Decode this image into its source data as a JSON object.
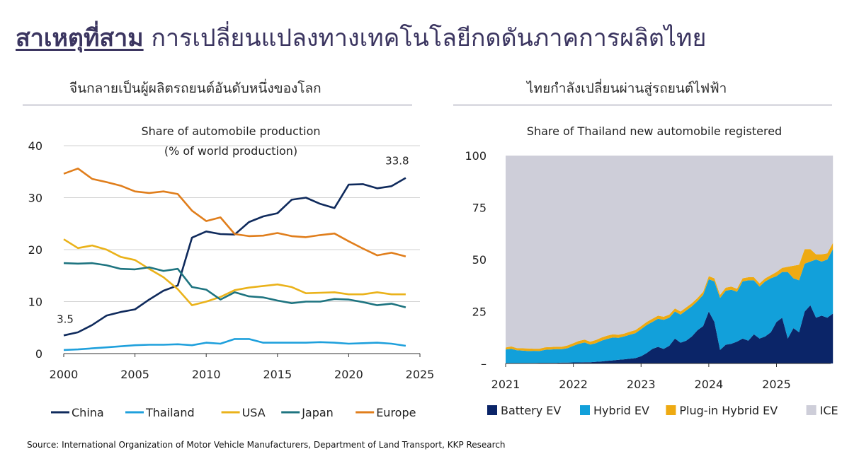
{
  "header": {
    "title_lead": "สาเหตุที่สาม",
    "title_rest": "การเปลี่ยนแปลงทางเทคโนโลยีกดดันภาคการผลิตไทย"
  },
  "left_panel": {
    "subheading": "จีนกลายเป็นผู้ผลิตรถยนต์อันดับหนึ่งของโลก"
  },
  "right_panel": {
    "subheading": "ไทยกำลังเปลี่ยนผ่านสู่รถยนต์ไฟฟ้า"
  },
  "source": "Source: International Organization of Motor Vehicle Manufacturers, Department of Land Transport, KKP Research",
  "chart_data": [
    {
      "type": "line",
      "title": "Share of automobile production",
      "subtitle": "(% of world production)",
      "xlim": [
        2000,
        2025
      ],
      "ylim": [
        0,
        40
      ],
      "xticks": [
        2000,
        2005,
        2010,
        2015,
        2020,
        2025
      ],
      "yticks": [
        0,
        10,
        20,
        30,
        40
      ],
      "x": [
        2000,
        2001,
        2002,
        2003,
        2004,
        2005,
        2006,
        2007,
        2008,
        2009,
        2010,
        2011,
        2012,
        2013,
        2014,
        2015,
        2016,
        2017,
        2018,
        2019,
        2020,
        2021,
        2022,
        2023,
        2024
      ],
      "series": [
        {
          "name": "China",
          "color": "#0f2a5c",
          "values": [
            3.5,
            4.1,
            5.5,
            7.3,
            8.0,
            8.5,
            10.4,
            12.1,
            13.1,
            22.3,
            23.5,
            23.0,
            22.9,
            25.3,
            26.4,
            27.0,
            29.6,
            30.0,
            28.8,
            28.0,
            32.5,
            32.6,
            31.8,
            32.2,
            33.8
          ]
        },
        {
          "name": "Thailand",
          "color": "#1fa0dc",
          "values": [
            0.7,
            0.8,
            1.0,
            1.2,
            1.4,
            1.6,
            1.7,
            1.7,
            1.8,
            1.6,
            2.1,
            1.9,
            2.8,
            2.8,
            2.1,
            2.1,
            2.1,
            2.1,
            2.2,
            2.1,
            1.9,
            2.0,
            2.1,
            1.9,
            1.5
          ]
        },
        {
          "name": "USA",
          "color": "#eab21a",
          "values": [
            22.0,
            20.3,
            20.8,
            20.0,
            18.6,
            18.0,
            16.3,
            14.7,
            12.4,
            9.3,
            10.0,
            10.9,
            12.2,
            12.7,
            13.0,
            13.3,
            12.8,
            11.6,
            11.7,
            11.8,
            11.4,
            11.4,
            11.8,
            11.4,
            11.4
          ]
        },
        {
          "name": "Japan",
          "color": "#1e7480",
          "values": [
            17.4,
            17.3,
            17.4,
            17.0,
            16.3,
            16.2,
            16.6,
            15.9,
            16.3,
            12.8,
            12.3,
            10.4,
            11.8,
            11.0,
            10.8,
            10.2,
            9.7,
            10.0,
            10.0,
            10.5,
            10.4,
            9.9,
            9.3,
            9.6,
            8.9
          ]
        },
        {
          "name": "Europe",
          "color": "#e07e1c",
          "values": [
            34.6,
            35.6,
            33.6,
            33.0,
            32.3,
            31.2,
            30.9,
            31.2,
            30.7,
            27.5,
            25.5,
            26.2,
            23.0,
            22.6,
            22.7,
            23.2,
            22.6,
            22.4,
            22.8,
            23.1,
            21.6,
            20.2,
            18.9,
            19.4,
            18.7
          ]
        }
      ],
      "annotations": [
        {
          "text": "3.5",
          "series": "China",
          "x": 2000
        },
        {
          "text": "33.8",
          "series": "China",
          "x": 2024
        }
      ],
      "legend": "bottom"
    },
    {
      "type": "area",
      "stacked": true,
      "title": "Share of Thailand new automobile registered",
      "xlim": [
        2021,
        2025.8
      ],
      "ylim": [
        0,
        100
      ],
      "xticks": [
        2021,
        2022,
        2023,
        2024,
        2025
      ],
      "yticks": [
        0,
        25,
        50,
        75,
        100
      ],
      "ytick_labels": [
        "–",
        "25",
        "50",
        "75",
        "100"
      ],
      "frequency": "monthly",
      "x_start": 2021,
      "series": [
        {
          "name": "Battery EV",
          "color": "#0b2568",
          "values": [
            0.2,
            0.2,
            0.2,
            0.2,
            0.2,
            0.2,
            0.3,
            0.3,
            0.3,
            0.3,
            0.4,
            0.4,
            0.5,
            0.5,
            0.6,
            0.6,
            0.8,
            1.0,
            1.3,
            1.5,
            1.8,
            2.0,
            2.3,
            2.6,
            3.5,
            5.0,
            7.0,
            8.0,
            7.0,
            8.5,
            12.0,
            10.0,
            11.0,
            13.0,
            16.0,
            18.0,
            25.0,
            20.0,
            6.5,
            9.0,
            9.5,
            10.5,
            12.0,
            11.0,
            14.0,
            12.0,
            13.0,
            15.0,
            20.0,
            22.0,
            12.0,
            17.0,
            15.0,
            25.0,
            28.0,
            22.0,
            23.0,
            22.0,
            24.0
          ]
        },
        {
          "name": "Hybrid EV",
          "color": "#12a0da",
          "values": [
            6.5,
            6.8,
            6.2,
            6.0,
            5.8,
            5.9,
            5.7,
            6.3,
            6.4,
            6.6,
            6.5,
            7.0,
            8.0,
            9.0,
            9.5,
            8.5,
            9.0,
            10.0,
            10.5,
            11.0,
            10.5,
            11.0,
            11.5,
            12.0,
            13.0,
            13.5,
            13.0,
            13.5,
            14.0,
            13.5,
            13.0,
            13.5,
            14.5,
            14.5,
            14.0,
            15.0,
            15.5,
            19.5,
            25.0,
            26.0,
            26.0,
            24.0,
            27.5,
            29.0,
            26.0,
            25.0,
            26.5,
            26.0,
            22.0,
            22.0,
            32.0,
            24.0,
            25.0,
            23.0,
            21.0,
            28.0,
            26.0,
            28.0,
            31.0
          ]
        },
        {
          "name": "Plug-in Hybrid EV",
          "color": "#eeaa12",
          "values": [
            1.0,
            1.2,
            1.0,
            1.1,
            1.2,
            1.0,
            1.1,
            1.2,
            1.2,
            1.2,
            1.2,
            1.3,
            1.3,
            1.4,
            1.4,
            1.4,
            1.5,
            1.5,
            1.6,
            1.5,
            1.5,
            1.4,
            1.5,
            1.5,
            1.5,
            1.5,
            1.5,
            1.5,
            1.5,
            1.5,
            1.5,
            1.5,
            1.5,
            1.5,
            1.5,
            1.5,
            1.5,
            1.5,
            1.5,
            1.5,
            1.5,
            1.5,
            1.5,
            1.5,
            1.5,
            1.5,
            1.5,
            1.5,
            2.0,
            2.0,
            2.5,
            6.0,
            7.5,
            7.0,
            6.0,
            2.5,
            3.5,
            3.0,
            3.0
          ]
        },
        {
          "name": "ICE",
          "color": "#ceced9",
          "values": [
            92.3,
            91.8,
            92.6,
            92.7,
            92.8,
            92.9,
            92.9,
            92.2,
            92.1,
            91.9,
            91.9,
            91.3,
            90.2,
            89.1,
            88.5,
            89.5,
            88.7,
            87.5,
            86.6,
            86.0,
            86.2,
            85.6,
            84.7,
            83.9,
            82.0,
            80.0,
            78.5,
            77.0,
            77.5,
            76.5,
            73.5,
            75.0,
            73.0,
            71.0,
            68.5,
            65.5,
            58.0,
            59.0,
            67.0,
            63.5,
            63.0,
            64.0,
            59.0,
            58.5,
            58.5,
            61.5,
            59.0,
            57.5,
            56.0,
            54.0,
            53.5,
            53.0,
            52.5,
            45.0,
            45.0,
            47.5,
            47.5,
            47.0,
            42.0
          ]
        }
      ],
      "legend": "bottom"
    }
  ]
}
